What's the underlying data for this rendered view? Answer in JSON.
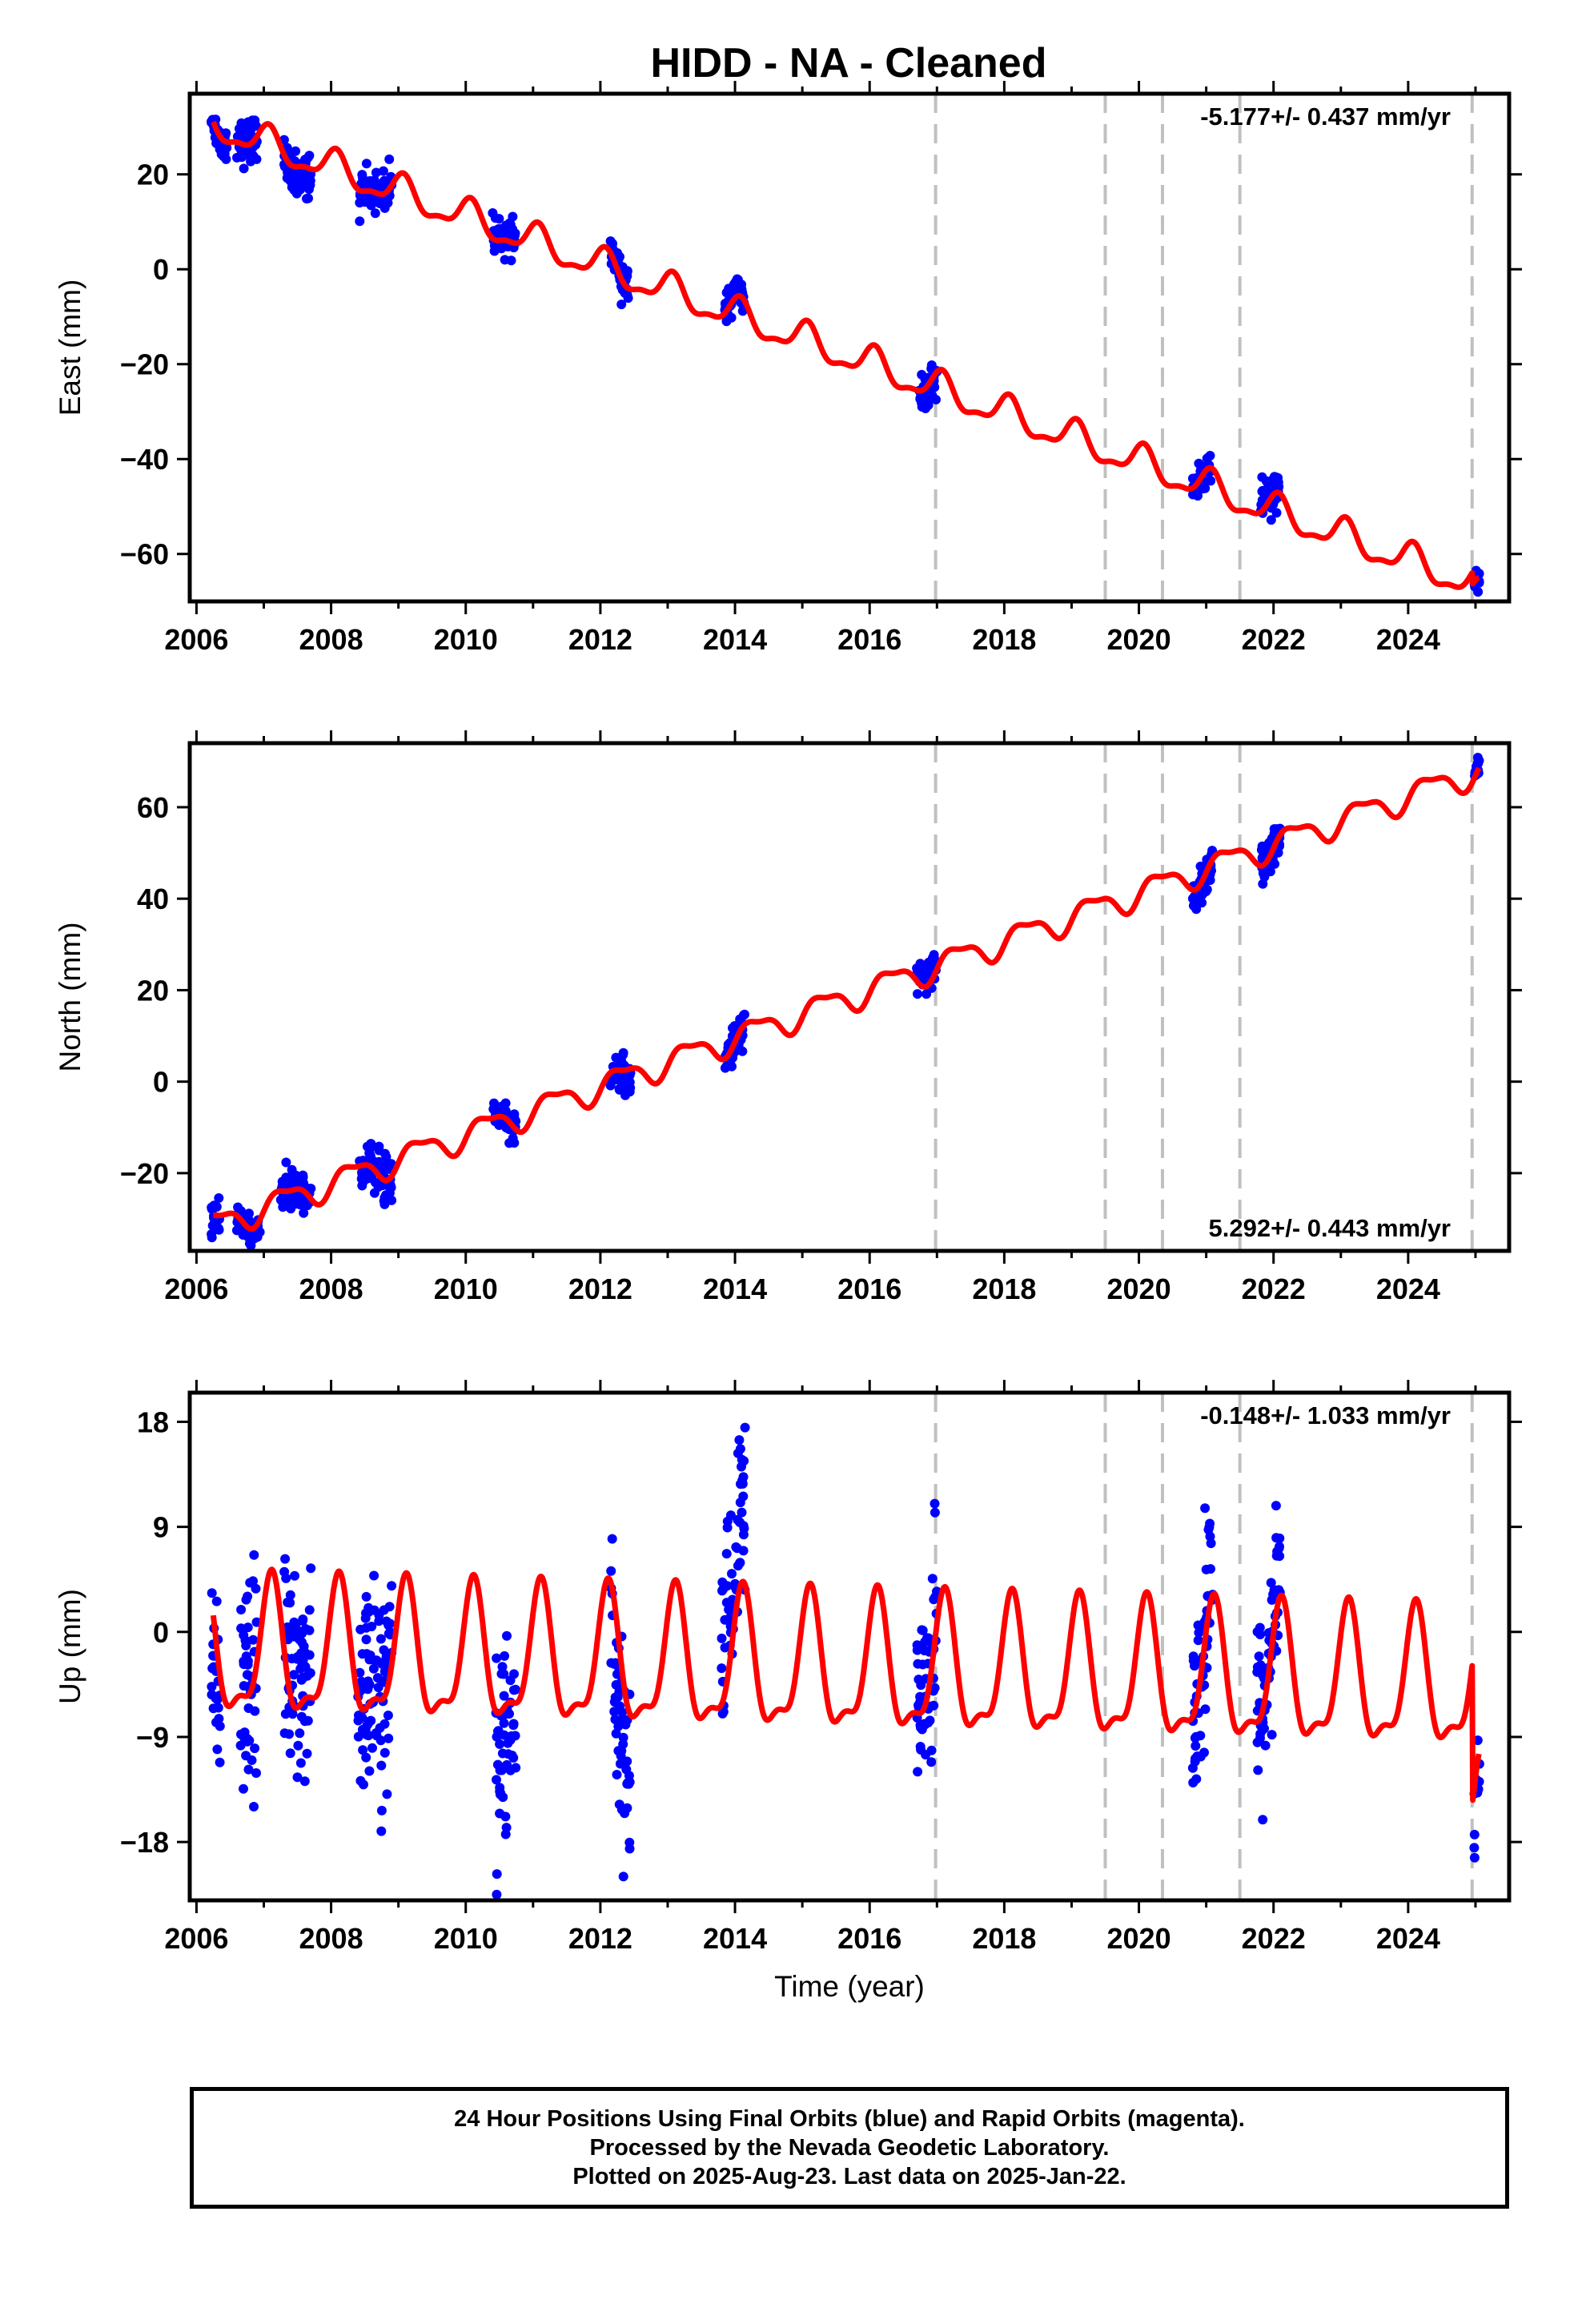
{
  "title": "HIDD  - NA - Cleaned",
  "footer": {
    "line1": "24 Hour Positions Using Final Orbits (blue) and Rapid Orbits (magenta).",
    "line2": "Processed by the Nevada Geodetic Laboratory.",
    "line3": "Plotted on 2025-Aug-23. Last data on 2025-Jan-22."
  },
  "colors": {
    "observations": "#0000ff",
    "model": "#ff0000",
    "offsets": "#c0c0c0"
  },
  "chart_data": [
    {
      "type": "scatter",
      "component": "east",
      "ylabel": "East (mm)",
      "xlim": [
        2005.9,
        2025.5
      ],
      "ylim": [
        -70,
        37
      ],
      "xticks": [
        2006,
        2008,
        2010,
        2012,
        2014,
        2016,
        2018,
        2020,
        2022,
        2024
      ],
      "yticks": [
        -60,
        -40,
        -20,
        0,
        20
      ],
      "rate_label": "-5.177+/- 0.437 mm/yr",
      "rate_position": "top-right",
      "offsets": [
        2016.98,
        2019.5,
        2020.35,
        2021.5,
        2024.95
      ],
      "model": {
        "start_year": 2006.25,
        "end_year": 2025.05,
        "value_at_start": 30.5,
        "rate": -5.177,
        "annual_amplitude": 3.2,
        "annual_phase": 1.2,
        "semiannual_amplitude": 1.2,
        "semiannual_phase": 0.5,
        "breaks": [
          {
            "year": 2016.98,
            "offset": 0
          },
          {
            "year": 2024.95,
            "offset": -2.5
          }
        ]
      },
      "observations": [
        {
          "start": 2006.22,
          "end": 2006.45,
          "offset": -0.5,
          "spread": 1.8
        },
        {
          "start": 2006.6,
          "end": 2006.9,
          "offset": 0.5,
          "spread": 2.3
        },
        {
          "start": 2007.3,
          "end": 2007.7,
          "offset": -1.5,
          "spread": 2.2
        },
        {
          "start": 2008.42,
          "end": 2008.9,
          "offset": 0.5,
          "spread": 2.0
        },
        {
          "start": 2010.4,
          "end": 2010.75,
          "offset": 0.5,
          "spread": 1.8
        },
        {
          "start": 2012.15,
          "end": 2012.42,
          "offset": 0.5,
          "spread": 2.0
        },
        {
          "start": 2013.85,
          "end": 2014.15,
          "offset": 0.5,
          "spread": 1.5
        },
        {
          "start": 2016.72,
          "end": 2017.0,
          "offset": -1.0,
          "spread": 1.8
        },
        {
          "start": 2020.8,
          "end": 2021.08,
          "offset": -0.5,
          "spread": 2.0
        },
        {
          "start": 2021.8,
          "end": 2022.08,
          "offset": 1.0,
          "spread": 2.0
        },
        {
          "start": 2024.98,
          "end": 2025.06,
          "offset": -0.5,
          "spread": 1.0
        }
      ]
    },
    {
      "type": "scatter",
      "component": "north",
      "ylabel": "North (mm)",
      "xlim": [
        2005.9,
        2025.5
      ],
      "ylim": [
        -37,
        74
      ],
      "xticks": [
        2006,
        2008,
        2010,
        2012,
        2014,
        2016,
        2018,
        2020,
        2022,
        2024
      ],
      "yticks": [
        -20,
        0,
        20,
        40,
        60
      ],
      "rate_label": "5.292+/- 0.443 mm/yr",
      "rate_position": "bottom-right",
      "offsets": [
        2016.98,
        2019.5,
        2020.35,
        2021.5,
        2024.95
      ],
      "model": {
        "start_year": 2006.25,
        "end_year": 2025.05,
        "value_at_start": -31.5,
        "rate": 5.292,
        "annual_amplitude": 2.8,
        "annual_phase": -0.4,
        "semiannual_amplitude": 1.0,
        "semiannual_phase": 0.3,
        "breaks": [
          {
            "year": 2016.98,
            "offset": 0
          },
          {
            "year": 2024.95,
            "offset": 0
          }
        ]
      },
      "observations": [
        {
          "start": 2006.22,
          "end": 2006.35,
          "offset": -1.0,
          "spread": 2.0
        },
        {
          "start": 2006.6,
          "end": 2006.95,
          "offset": -0.5,
          "spread": 1.5
        },
        {
          "start": 2007.25,
          "end": 2007.7,
          "offset": 0.0,
          "spread": 2.0
        },
        {
          "start": 2008.42,
          "end": 2008.9,
          "offset": 0.0,
          "spread": 2.5
        },
        {
          "start": 2010.4,
          "end": 2010.75,
          "offset": 0.5,
          "spread": 1.8
        },
        {
          "start": 2012.15,
          "end": 2012.45,
          "offset": -1.0,
          "spread": 2.0
        },
        {
          "start": 2013.85,
          "end": 2014.15,
          "offset": 0.0,
          "spread": 2.0
        },
        {
          "start": 2016.7,
          "end": 2017.0,
          "offset": 1.0,
          "spread": 2.0
        },
        {
          "start": 2020.8,
          "end": 2021.1,
          "offset": -1.0,
          "spread": 2.2
        },
        {
          "start": 2021.8,
          "end": 2022.1,
          "offset": 0.0,
          "spread": 2.0
        },
        {
          "start": 2024.98,
          "end": 2025.06,
          "offset": 0.5,
          "spread": 1.0
        }
      ]
    },
    {
      "type": "scatter",
      "component": "up",
      "ylabel": "Up (mm)",
      "xlabel": "Time (year)",
      "xlim": [
        2005.9,
        2025.5
      ],
      "ylim": [
        -23,
        20.5
      ],
      "xticks": [
        2006,
        2008,
        2010,
        2012,
        2014,
        2016,
        2018,
        2020,
        2022,
        2024
      ],
      "yticks": [
        -18,
        -9,
        0,
        9,
        18
      ],
      "rate_label": "-0.148+/- 1.033 mm/yr",
      "rate_position": "top-right",
      "offsets": [
        2016.98,
        2019.5,
        2020.35,
        2021.5,
        2024.95
      ],
      "model": {
        "start_year": 2006.25,
        "end_year": 2025.05,
        "value_at_start": -2.0,
        "rate": -0.148,
        "annual_amplitude": 5.5,
        "annual_phase": 0.9,
        "semiannual_amplitude": 2.0,
        "semiannual_phase": 0.0,
        "breaks": [
          {
            "year": 2016.98,
            "offset": 0
          },
          {
            "year": 2024.95,
            "offset": -12.0
          }
        ]
      },
      "observations": [
        {
          "start": 2006.22,
          "end": 2006.35,
          "offset": -4.0,
          "spread": 3.5
        },
        {
          "start": 2006.65,
          "end": 2006.9,
          "offset": 1.0,
          "spread": 4.5
        },
        {
          "start": 2007.3,
          "end": 2007.7,
          "offset": 2.5,
          "spread": 4.0
        },
        {
          "start": 2008.4,
          "end": 2008.9,
          "offset": 0.5,
          "spread": 4.5
        },
        {
          "start": 2010.45,
          "end": 2010.75,
          "offset": -2.5,
          "spread": 4.0
        },
        {
          "start": 2012.15,
          "end": 2012.45,
          "offset": -5.0,
          "spread": 4.0
        },
        {
          "start": 2013.8,
          "end": 2014.15,
          "offset": 4.5,
          "spread": 4.5
        },
        {
          "start": 2016.7,
          "end": 2017.0,
          "offset": 1.5,
          "spread": 4.0
        },
        {
          "start": 2020.8,
          "end": 2021.1,
          "offset": 0.5,
          "spread": 4.0
        },
        {
          "start": 2021.75,
          "end": 2022.1,
          "offset": 0.5,
          "spread": 4.0
        },
        {
          "start": 2024.98,
          "end": 2025.06,
          "offset": -3.0,
          "spread": 3.0
        }
      ]
    }
  ]
}
